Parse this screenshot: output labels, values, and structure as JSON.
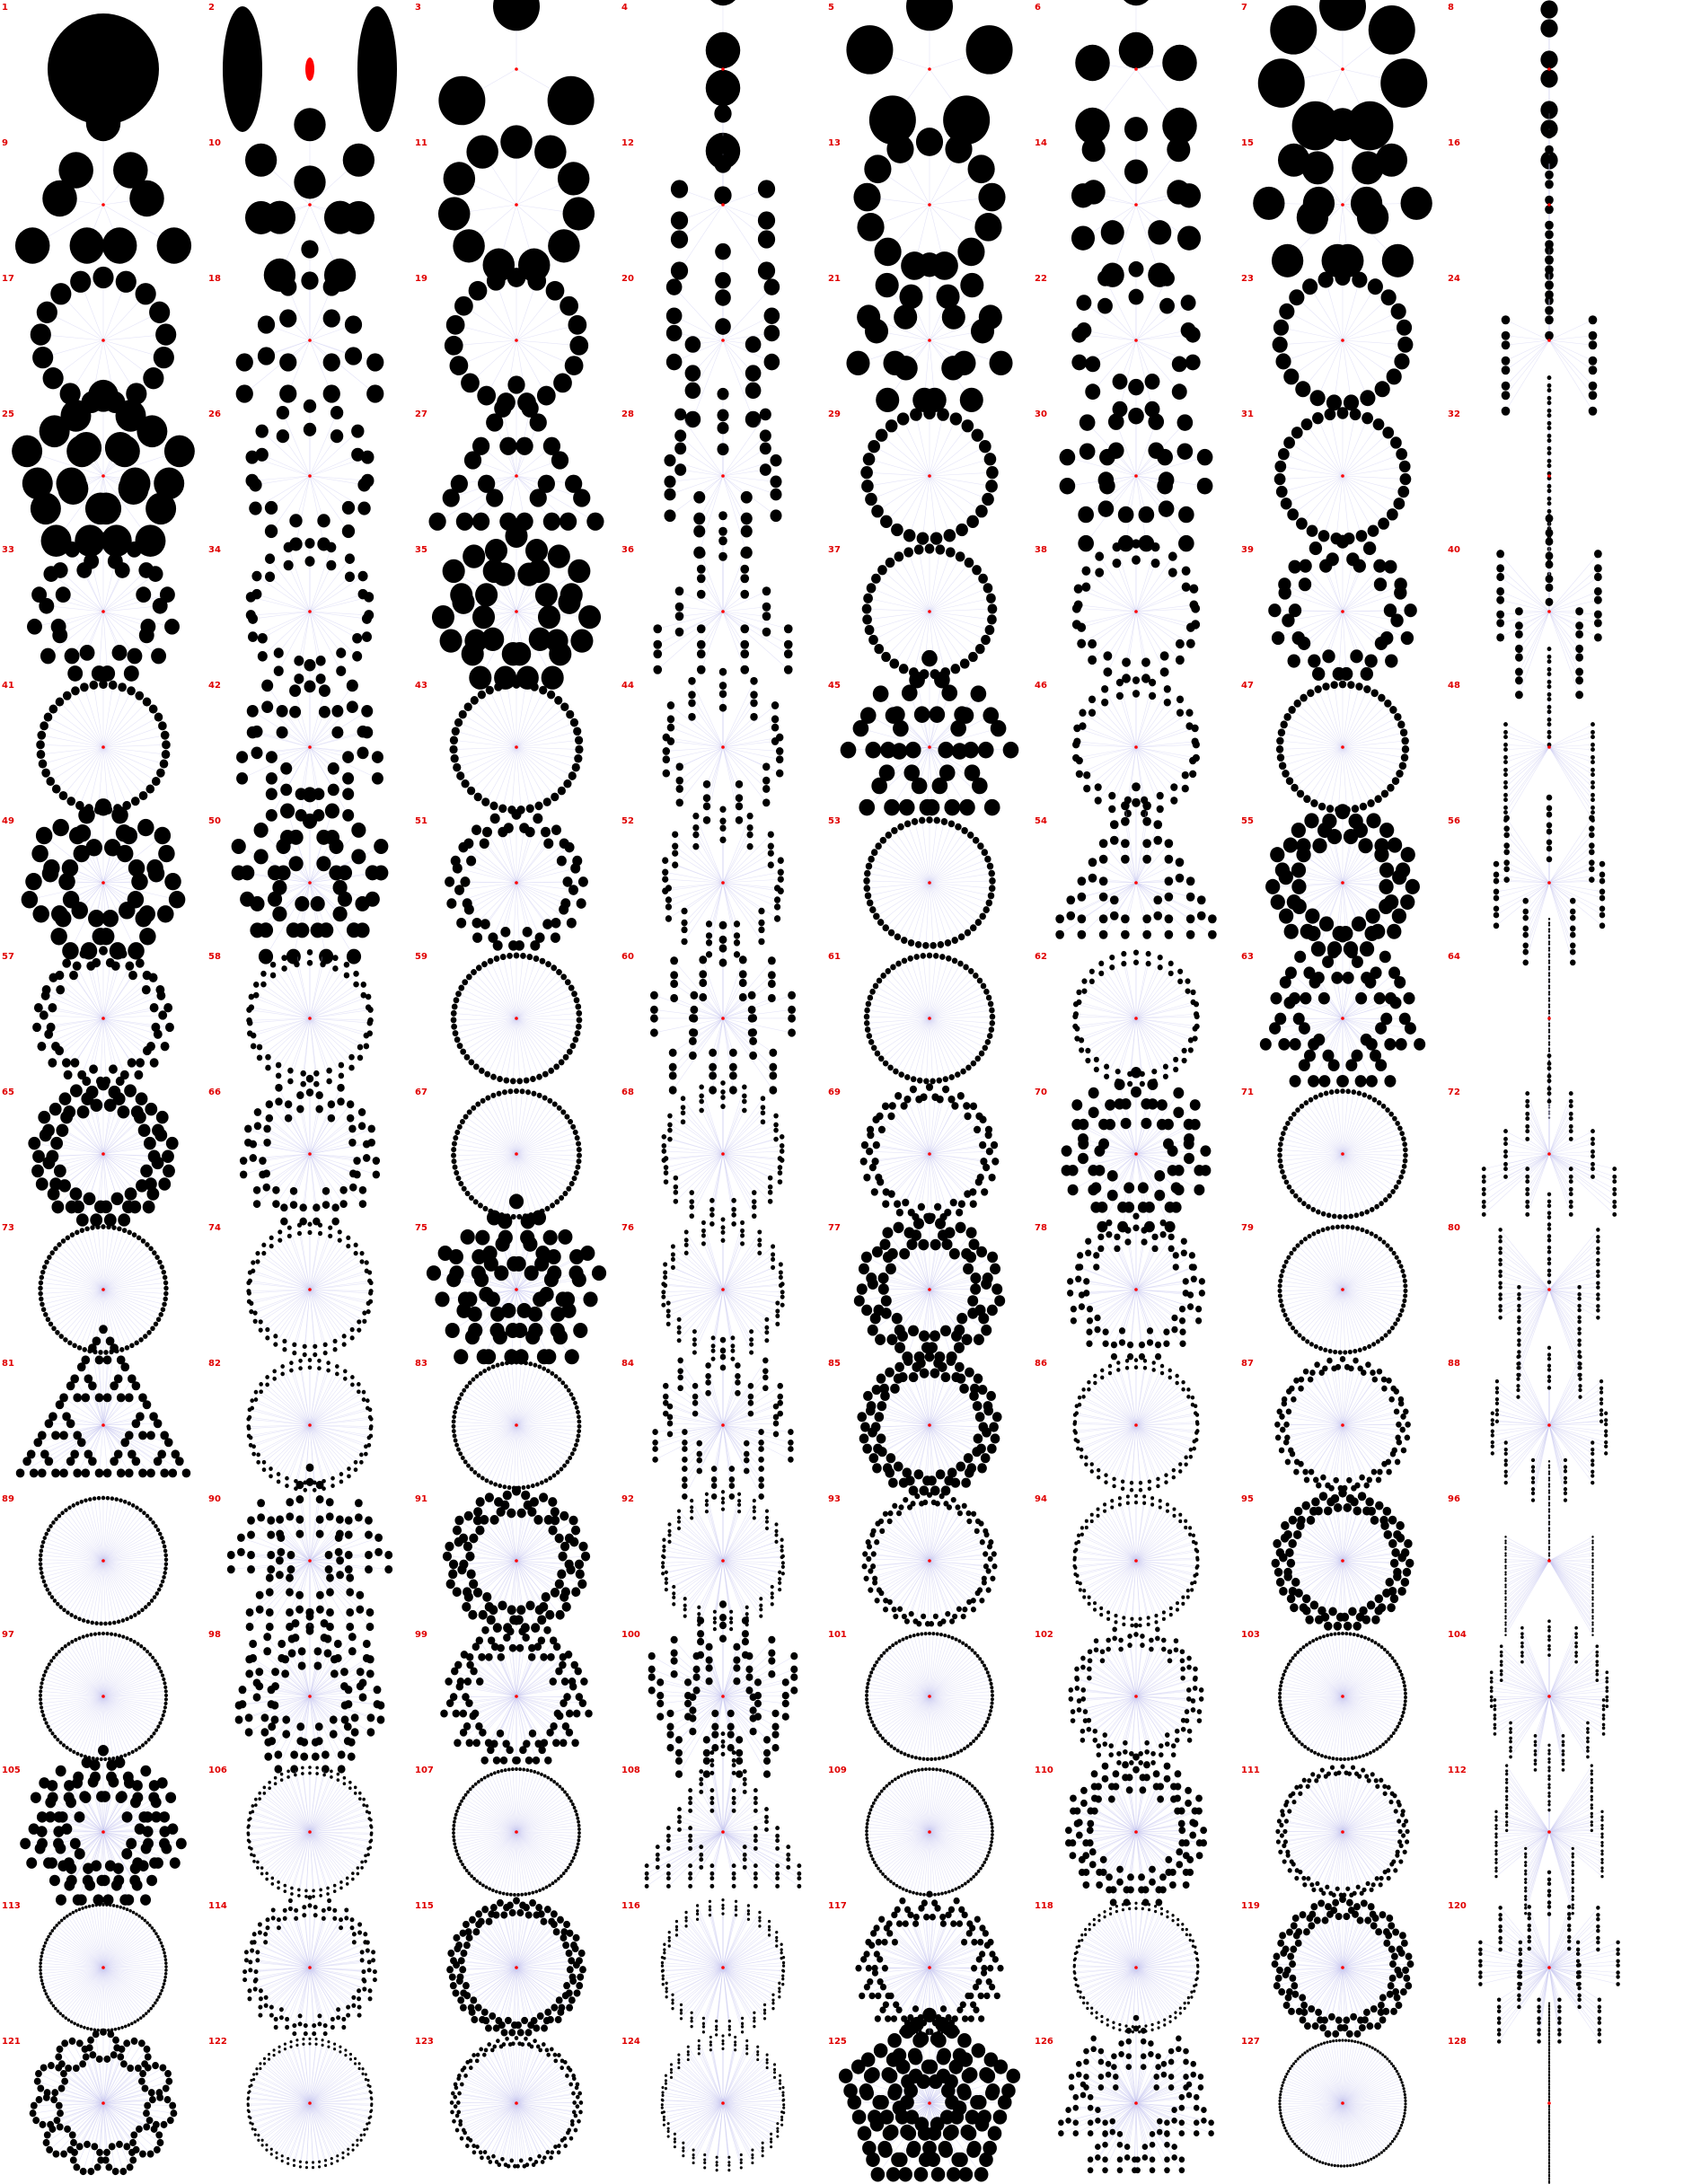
{
  "title": "",
  "layout": {
    "columns": 8,
    "rows": 16,
    "count": 128
  },
  "colors": {
    "dot": "#000000",
    "label": "#e00000",
    "center": "#ff0000",
    "spoke": "#c8c8f0",
    "background": "#ffffff"
  },
  "numbers": [
    "1",
    "2",
    "3",
    "4",
    "5",
    "6",
    "7",
    "8",
    "9",
    "10",
    "11",
    "12",
    "13",
    "14",
    "15",
    "16",
    "17",
    "18",
    "19",
    "20",
    "21",
    "22",
    "23",
    "24",
    "25",
    "26",
    "27",
    "28",
    "29",
    "30",
    "31",
    "32",
    "33",
    "34",
    "35",
    "36",
    "37",
    "38",
    "39",
    "40",
    "41",
    "42",
    "43",
    "44",
    "45",
    "46",
    "47",
    "48",
    "49",
    "50",
    "51",
    "52",
    "53",
    "54",
    "55",
    "56",
    "57",
    "58",
    "59",
    "60",
    "61",
    "62",
    "63",
    "64",
    "65",
    "66",
    "67",
    "68",
    "69",
    "70",
    "71",
    "72",
    "73",
    "74",
    "75",
    "76",
    "77",
    "78",
    "79",
    "80",
    "81",
    "82",
    "83",
    "84",
    "85",
    "86",
    "87",
    "88",
    "89",
    "90",
    "91",
    "92",
    "93",
    "94",
    "95",
    "96",
    "97",
    "98",
    "99",
    "100",
    "101",
    "102",
    "103",
    "104",
    "105",
    "106",
    "107",
    "108",
    "109",
    "110",
    "111",
    "112",
    "113",
    "114",
    "115",
    "116",
    "117",
    "118",
    "119",
    "120",
    "121",
    "122",
    "123",
    "124",
    "125",
    "126",
    "127",
    "128"
  ]
}
